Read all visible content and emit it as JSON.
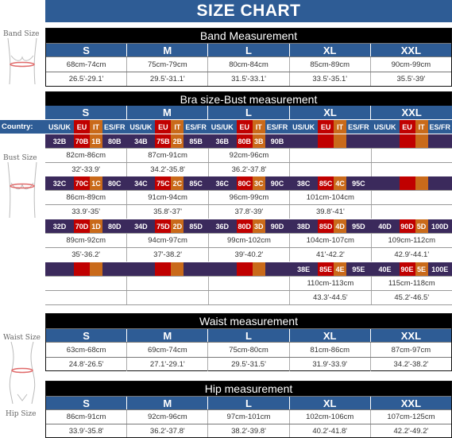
{
  "title": "SIZE CHART",
  "figure_labels": {
    "band": "Band Size",
    "bust": "Bust Size",
    "waist": "Waist Size",
    "hip": "Hip Size"
  },
  "sizes": [
    "S",
    "M",
    "L",
    "XL",
    "XXL"
  ],
  "band": {
    "title": "Band Measurement",
    "cm": [
      "68cm-74cm",
      "75cm-79cm",
      "80cm-84cm",
      "85cm-89cm",
      "90cm-99cm"
    ],
    "inch": [
      "26.5'-29.1'",
      "29.5'-31.1'",
      "31.5'-33.1'",
      "33.5'-35.1'",
      "35.5'-39'"
    ]
  },
  "bra": {
    "title": "Bra size-Bust measurement",
    "country_label": "Country:",
    "country_cols": [
      "US/UK",
      "EU",
      "IT",
      "ES/FR"
    ],
    "groups": [
      {
        "cups": [
          [
            "32B",
            "70B",
            "1B",
            "80B"
          ],
          [
            "34B",
            "75B",
            "2B",
            "85B"
          ],
          [
            "36B",
            "80B",
            "3B",
            "90B"
          ],
          [
            "",
            "",
            "",
            ""
          ],
          [
            "",
            "",
            "",
            ""
          ]
        ],
        "cm": [
          "82cm-86cm",
          "87cm-91cm",
          "92cm-96cm",
          "",
          ""
        ],
        "inch": [
          "32'-33.9'",
          "34.2'-35.8'",
          "36.2'-37.8'",
          "",
          ""
        ]
      },
      {
        "cups": [
          [
            "32C",
            "70C",
            "1C",
            "80C"
          ],
          [
            "34C",
            "75C",
            "2C",
            "85C"
          ],
          [
            "36C",
            "80C",
            "3C",
            "90C"
          ],
          [
            "38C",
            "85C",
            "4C",
            "95C"
          ],
          [
            "",
            "",
            "",
            ""
          ]
        ],
        "cm": [
          "86cm-89cm",
          "91cm-94cm",
          "96cm-99cm",
          "101cm-104cm",
          ""
        ],
        "inch": [
          "33.9'-35'",
          "35.8'-37'",
          "37.8'-39'",
          "39.8'-41'",
          ""
        ]
      },
      {
        "cups": [
          [
            "32D",
            "70D",
            "1D",
            "80D"
          ],
          [
            "34D",
            "75D",
            "2D",
            "85D"
          ],
          [
            "36D",
            "80D",
            "3D",
            "90D"
          ],
          [
            "38D",
            "85D",
            "4D",
            "95D"
          ],
          [
            "40D",
            "90D",
            "5D",
            "100D"
          ]
        ],
        "cm": [
          "89cm-92cm",
          "94cm-97cm",
          "99cm-102cm",
          "104cm-107cm",
          "109cm-112cm"
        ],
        "inch": [
          "35'-36.2'",
          "37'-38.2'",
          "39'-40.2'",
          "41'-42.2'",
          "42.9'-44.1'"
        ]
      },
      {
        "cups": [
          [
            "",
            "",
            "",
            ""
          ],
          [
            "",
            "",
            "",
            ""
          ],
          [
            "",
            "",
            "",
            ""
          ],
          [
            "38E",
            "85E",
            "4E",
            "95E"
          ],
          [
            "40E",
            "90E",
            "5E",
            "100E"
          ]
        ],
        "cm": [
          "",
          "",
          "",
          "110cm-113cm",
          "115cm-118cm"
        ],
        "inch": [
          "",
          "",
          "",
          "43.3'-44.5'",
          "45.2'-46.5'"
        ]
      }
    ]
  },
  "waist": {
    "title": "Waist measurement",
    "cm": [
      "63cm-68cm",
      "69cm-74cm",
      "75cm-80cm",
      "81cm-86cm",
      "87cm-97cm"
    ],
    "inch": [
      "24.8'-26.5'",
      "27.1'-29.1'",
      "29.5'-31.5'",
      "31.9'-33.9'",
      "34.2'-38.2'"
    ]
  },
  "hip": {
    "title": "Hip measurement",
    "cm": [
      "86cm-91cm",
      "92cm-96cm",
      "97cm-101cm",
      "102cm-106cm",
      "107cm-125cm"
    ],
    "inch": [
      "33.9'-35.8'",
      "36.2'-37.8'",
      "38.2'-39.8'",
      "40.2'-41.8'",
      "42.2'-49.2'"
    ]
  }
}
